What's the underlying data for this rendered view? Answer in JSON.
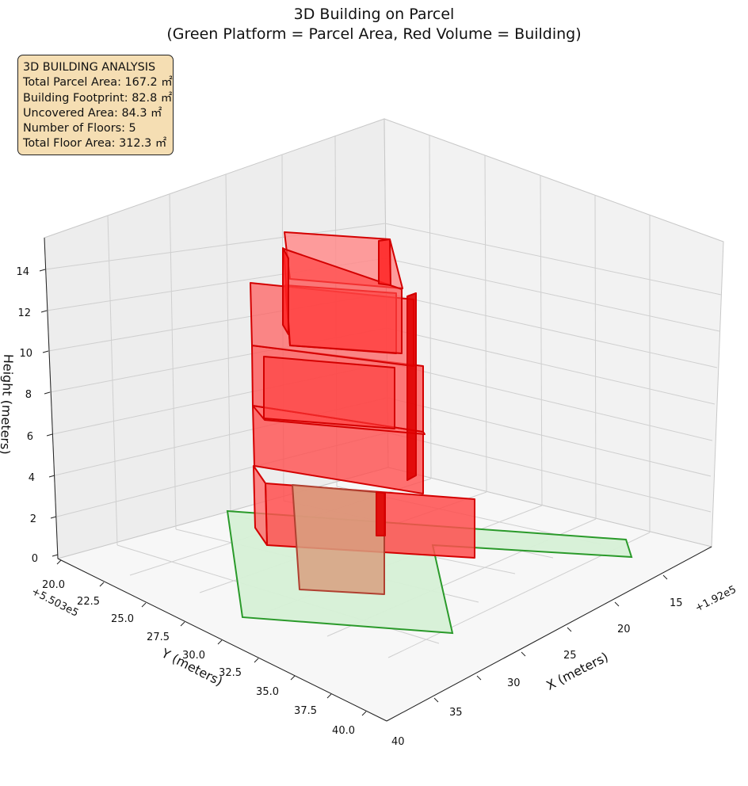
{
  "chart_data": {
    "type": "3d-surface",
    "title": "3D Building on Parcel",
    "subtitle": "(Green Platform = Parcel Area, Red Volume = Building)",
    "info_box": {
      "title": "3D BUILDING ANALYSIS",
      "lines": [
        "Total Parcel Area: 167.2 ㎡",
        "Building Footprint: 82.8 ㎡",
        "Uncovered Area: 84.3 ㎡",
        "Number of Floors: 5",
        "Total Floor Area: 312.3 ㎡"
      ]
    },
    "axes": {
      "x": {
        "label": "X (meters)",
        "offset_text": "+1.92e5",
        "ticks": [
          "15",
          "20",
          "25",
          "30",
          "35",
          "40"
        ]
      },
      "y": {
        "label": "Y (meters)",
        "offset_text": "+5.503e5",
        "ticks": [
          "20.0",
          "22.5",
          "25.0",
          "27.5",
          "30.0",
          "32.5",
          "35.0",
          "37.5",
          "40.0"
        ]
      },
      "z": {
        "label": "Height (meters)",
        "ticks": [
          "0",
          "2",
          "4",
          "6",
          "8",
          "10",
          "12",
          "14"
        ]
      }
    },
    "colors": {
      "parcel_fill": "#d6f0d6",
      "parcel_edge": "#2a9a2a",
      "building_fill": "#ff4d4d",
      "building_edge": "#d40000",
      "pane": "#f2f2f2",
      "grid": "#cfcfcf"
    }
  }
}
